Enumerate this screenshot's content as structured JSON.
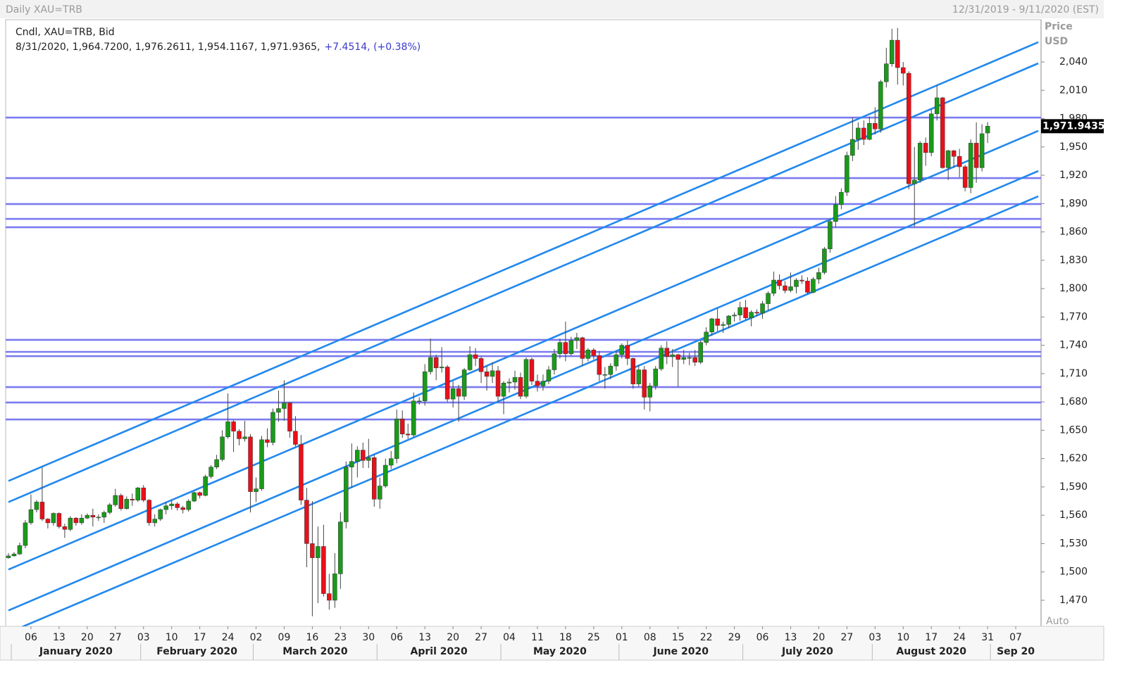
{
  "chart_data": {
    "type": "candlestick",
    "title": "Daily XAU=TRB",
    "date_range": "12/31/2019 - 9/11/2020 (EST)",
    "legend_title": "Cndl, XAU=TRB, Bid",
    "info": "8/31/2020, 1,964.7200, 1,976.2611, 1,954.1167, 1,971.9365,",
    "change": "+7.4514, (+0.38%)",
    "y_label": "Price",
    "y_unit": "USD",
    "scale_mode": "Auto",
    "last_price": {
      "value": 1971.9435,
      "label": "1,971.9435"
    },
    "up_color": "#1a9a1a",
    "down_color": "#e8101a",
    "hline_color": "#7b7bf0",
    "channel_color": "#2288ee",
    "ylim": [
      1442.4,
      2084.7
    ],
    "yticks": [
      {
        "value": 1470,
        "label": "1,470"
      },
      {
        "value": 1500,
        "label": "1,500"
      },
      {
        "value": 1530,
        "label": "1,530"
      },
      {
        "value": 1560,
        "label": "1,560"
      },
      {
        "value": 1590,
        "label": "1,590"
      },
      {
        "value": 1620,
        "label": "1,620"
      },
      {
        "value": 1650,
        "label": "1,650"
      },
      {
        "value": 1680,
        "label": "1,680"
      },
      {
        "value": 1710,
        "label": "1,710"
      },
      {
        "value": 1740,
        "label": "1,740"
      },
      {
        "value": 1770,
        "label": "1,770"
      },
      {
        "value": 1800,
        "label": "1,800"
      },
      {
        "value": 1830,
        "label": "1,830"
      },
      {
        "value": 1860,
        "label": "1,860"
      },
      {
        "value": 1890,
        "label": "1,890"
      },
      {
        "value": 1920,
        "label": "1,920"
      },
      {
        "value": 1950,
        "label": "1,950"
      },
      {
        "value": 1980,
        "label": "1,980"
      },
      {
        "value": 2010,
        "label": "2,010"
      },
      {
        "value": 2040,
        "label": "2,040"
      }
    ],
    "hlines": [
      1981.1,
      1917.0,
      1889.5,
      1873.8,
      1864.9,
      1745.7,
      1733.0,
      1728.5,
      1695.7,
      1679.4,
      1661.4
    ],
    "channels": [
      {
        "start": 1596.3,
        "end": 2060.9
      },
      {
        "start": 1574.0,
        "end": 2038.5
      },
      {
        "start": 1502.5,
        "end": 1967.0
      },
      {
        "start": 1459.2,
        "end": 1924.5
      },
      {
        "start": 1435.7,
        "end": 1897.7
      }
    ],
    "months": [
      "January 2020",
      "February 2020",
      "March 2020",
      "April 2020",
      "May 2020",
      "June 2020",
      "July 2020",
      "August 2020",
      "Sep 20"
    ],
    "categories": [
      null,
      null,
      null,
      null,
      "06",
      null,
      null,
      null,
      null,
      "13",
      null,
      null,
      null,
      null,
      "20",
      null,
      null,
      null,
      null,
      "27",
      null,
      null,
      null,
      null,
      "03",
      null,
      null,
      null,
      null,
      "10",
      null,
      null,
      null,
      null,
      "17",
      null,
      null,
      null,
      null,
      "24",
      null,
      null,
      null,
      null,
      "02",
      null,
      null,
      null,
      null,
      "09",
      null,
      null,
      null,
      null,
      "16",
      null,
      null,
      null,
      null,
      "23",
      null,
      null,
      null,
      null,
      "30",
      null,
      null,
      null,
      null,
      "06",
      null,
      null,
      null,
      null,
      "13",
      null,
      null,
      null,
      null,
      "20",
      null,
      null,
      null,
      null,
      "27",
      null,
      null,
      null,
      null,
      "04",
      null,
      null,
      null,
      null,
      "11",
      null,
      null,
      null,
      null,
      "18",
      null,
      null,
      null,
      null,
      "25",
      null,
      null,
      null,
      null,
      "01",
      null,
      null,
      null,
      null,
      "08",
      null,
      null,
      null,
      null,
      "15",
      null,
      null,
      null,
      null,
      "22",
      null,
      null,
      null,
      null,
      "29",
      null,
      null,
      null,
      null,
      "06",
      null,
      null,
      null,
      null,
      "13",
      null,
      null,
      null,
      null,
      "20",
      null,
      null,
      null,
      null,
      "27",
      null,
      null,
      null,
      null,
      "03",
      null,
      null,
      null,
      null,
      "10",
      null,
      null,
      null,
      null,
      "17",
      null,
      null,
      null,
      null,
      "24",
      null,
      null,
      null,
      null,
      "31",
      null,
      null,
      null,
      null,
      "07",
      null,
      null,
      null,
      null
    ],
    "open": [
      1515,
      1517,
      1519,
      1528,
      1552,
      1566,
      1574,
      1556,
      1552,
      1562,
      1548,
      1545,
      1557,
      1552,
      1557,
      1560,
      1558,
      1558,
      1563,
      1571,
      1581,
      1567,
      1577,
      1576,
      1589,
      1576,
      1552,
      1556,
      1566,
      1570,
      1572,
      1568,
      1566,
      1575,
      1584,
      1581,
      1601,
      1611,
      1619,
      1643,
      1659,
      1649,
      1641,
      1643,
      1585,
      1588,
      1640,
      1637,
      1669,
      1673,
      1679,
      1649,
      1635,
      1576,
      1530,
      1515,
      1527,
      1477,
      1470,
      1498,
      1553,
      1611,
      1617,
      1629,
      1618,
      1621,
      1577,
      1591,
      1613,
      1620,
      1662,
      1646,
      1645,
      1681,
      1681,
      1712,
      1727,
      1716,
      1717,
      1683,
      1694,
      1686,
      1714,
      1730,
      1726,
      1712,
      1707,
      1713,
      1686,
      1700,
      1701,
      1706,
      1686,
      1725,
      1702,
      1697,
      1702,
      1714,
      1731,
      1743,
      1731,
      1745,
      1748,
      1726,
      1735,
      1729,
      1709,
      1709,
      1718,
      1730,
      1740,
      1726,
      1699,
      1714,
      1685,
      1697,
      1715,
      1737,
      1728,
      1730,
      1725,
      1727,
      1727,
      1722,
      1743,
      1754,
      1768,
      1761,
      1762,
      1771,
      1772,
      1780,
      1769,
      1775,
      1774,
      1784,
      1795,
      1809,
      1803,
      1798,
      1802,
      1809,
      1808,
      1796,
      1810,
      1817,
      1842,
      1871,
      1889,
      1902,
      1941,
      1958,
      1970,
      1958,
      1975,
      1969,
      2019,
      2038,
      2063,
      2034,
      2028,
      1911,
      1915,
      1954,
      1944,
      1985,
      2002,
      1928,
      1946,
      1940,
      1929,
      1907,
      1954,
      1928,
      1964.72,
      null,
      null,
      null,
      null,
      null,
      null,
      null,
      null,
      null
    ],
    "high": [
      1520,
      1521,
      1531,
      1555,
      1582,
      1576,
      1611,
      1557,
      1563,
      1563,
      1551,
      1559,
      1558,
      1561,
      1562,
      1567,
      1561,
      1565,
      1573,
      1588,
      1583,
      1580,
      1583,
      1590,
      1592,
      1577,
      1561,
      1567,
      1574,
      1576,
      1574,
      1570,
      1577,
      1585,
      1585,
      1603,
      1613,
      1624,
      1650,
      1689,
      1661,
      1651,
      1660,
      1646,
      1600,
      1644,
      1652,
      1673,
      1692,
      1703,
      1680,
      1665,
      1645,
      1589,
      1575,
      1548,
      1550,
      1498,
      1520,
      1563,
      1617,
      1636,
      1633,
      1637,
      1641,
      1624,
      1600,
      1620,
      1628,
      1672,
      1671,
      1657,
      1690,
      1685,
      1720,
      1747,
      1730,
      1738,
      1719,
      1702,
      1698,
      1716,
      1739,
      1737,
      1728,
      1718,
      1722,
      1718,
      1702,
      1705,
      1713,
      1711,
      1727,
      1727,
      1709,
      1709,
      1718,
      1736,
      1747,
      1765,
      1749,
      1753,
      1749,
      1737,
      1737,
      1734,
      1717,
      1721,
      1734,
      1742,
      1745,
      1727,
      1719,
      1718,
      1700,
      1718,
      1740,
      1744,
      1736,
      1731,
      1735,
      1732,
      1735,
      1745,
      1759,
      1769,
      1779,
      1765,
      1772,
      1775,
      1786,
      1788,
      1777,
      1778,
      1787,
      1797,
      1818,
      1815,
      1808,
      1817,
      1811,
      1814,
      1812,
      1812,
      1822,
      1844,
      1874,
      1898,
      1906,
      1945,
      1981,
      1976,
      1978,
      1982,
      1992,
      2021,
      2055,
      2075,
      2076,
      2040,
      2030,
      1950,
      1956,
      1960,
      1990,
      2015,
      2003,
      1947,
      1947,
      1948,
      1931,
      1958,
      1976,
      1974,
      1976.2611,
      null,
      null,
      null,
      null,
      null,
      null,
      null,
      null,
      null
    ],
    "low": [
      1514,
      1516,
      1518,
      1525,
      1550,
      1563,
      1554,
      1546,
      1549,
      1546,
      1536,
      1543,
      1549,
      1550,
      1556,
      1548,
      1554,
      1552,
      1561,
      1569,
      1565,
      1566,
      1570,
      1574,
      1574,
      1549,
      1548,
      1554,
      1561,
      1566,
      1565,
      1562,
      1564,
      1574,
      1578,
      1580,
      1599,
      1609,
      1617,
      1641,
      1627,
      1634,
      1638,
      1563,
      1574,
      1586,
      1632,
      1634,
      1659,
      1660,
      1642,
      1633,
      1571,
      1505,
      1453,
      1467,
      1474,
      1460,
      1462,
      1482,
      1546,
      1589,
      1600,
      1610,
      1610,
      1569,
      1567,
      1589,
      1609,
      1615,
      1642,
      1641,
      1643,
      1677,
      1676,
      1709,
      1703,
      1711,
      1680,
      1674,
      1659,
      1682,
      1713,
      1718,
      1700,
      1692,
      1700,
      1680,
      1667,
      1690,
      1693,
      1683,
      1684,
      1698,
      1691,
      1692,
      1699,
      1709,
      1726,
      1723,
      1729,
      1736,
      1718,
      1723,
      1725,
      1702,
      1694,
      1704,
      1713,
      1726,
      1719,
      1694,
      1696,
      1672,
      1670,
      1693,
      1713,
      1720,
      1717,
      1696,
      1720,
      1719,
      1718,
      1720,
      1740,
      1750,
      1755,
      1753,
      1758,
      1765,
      1766,
      1767,
      1760,
      1771,
      1768,
      1777,
      1792,
      1799,
      1795,
      1796,
      1795,
      1805,
      1794,
      1795,
      1805,
      1815,
      1838,
      1865,
      1884,
      1898,
      1935,
      1947,
      1952,
      1957,
      1963,
      1965,
      2013,
      2035,
      2016,
      2015,
      1905,
      1865,
      1912,
      1930,
      1940,
      1978,
      1927,
      1915,
      1928,
      1918,
      1903,
      1901,
      1912,
      1924,
      1954.1167,
      null,
      null,
      null,
      null,
      null,
      null,
      null,
      null,
      null
    ],
    "close": [
      1517,
      1519,
      1528,
      1552,
      1566,
      1574,
      1556,
      1552,
      1562,
      1548,
      1545,
      1557,
      1552,
      1557,
      1560,
      1558,
      1558,
      1563,
      1571,
      1581,
      1567,
      1577,
      1576,
      1589,
      1576,
      1552,
      1556,
      1566,
      1570,
      1572,
      1568,
      1566,
      1575,
      1584,
      1581,
      1601,
      1611,
      1619,
      1643,
      1659,
      1649,
      1641,
      1643,
      1585,
      1588,
      1640,
      1637,
      1669,
      1673,
      1679,
      1649,
      1635,
      1576,
      1530,
      1515,
      1527,
      1477,
      1470,
      1498,
      1553,
      1611,
      1617,
      1629,
      1618,
      1621,
      1577,
      1591,
      1613,
      1620,
      1662,
      1646,
      1645,
      1681,
      1681,
      1712,
      1727,
      1716,
      1717,
      1683,
      1694,
      1686,
      1714,
      1730,
      1726,
      1712,
      1707,
      1713,
      1686,
      1700,
      1701,
      1706,
      1686,
      1725,
      1702,
      1697,
      1702,
      1714,
      1731,
      1743,
      1731,
      1745,
      1748,
      1726,
      1735,
      1729,
      1709,
      1709,
      1718,
      1730,
      1740,
      1726,
      1699,
      1714,
      1685,
      1697,
      1715,
      1737,
      1728,
      1730,
      1725,
      1727,
      1727,
      1722,
      1743,
      1754,
      1768,
      1761,
      1762,
      1771,
      1772,
      1780,
      1769,
      1775,
      1774,
      1784,
      1795,
      1809,
      1803,
      1798,
      1802,
      1809,
      1808,
      1796,
      1810,
      1817,
      1842,
      1871,
      1889,
      1902,
      1941,
      1958,
      1970,
      1958,
      1975,
      1969,
      2019,
      2038,
      2063,
      2034,
      2028,
      1911,
      1915,
      1954,
      1944,
      1985,
      2002,
      1928,
      1946,
      1940,
      1929,
      1907,
      1954,
      1928,
      1964,
      1971.9365,
      null,
      null,
      null,
      null,
      null,
      null,
      null,
      null,
      null
    ]
  }
}
